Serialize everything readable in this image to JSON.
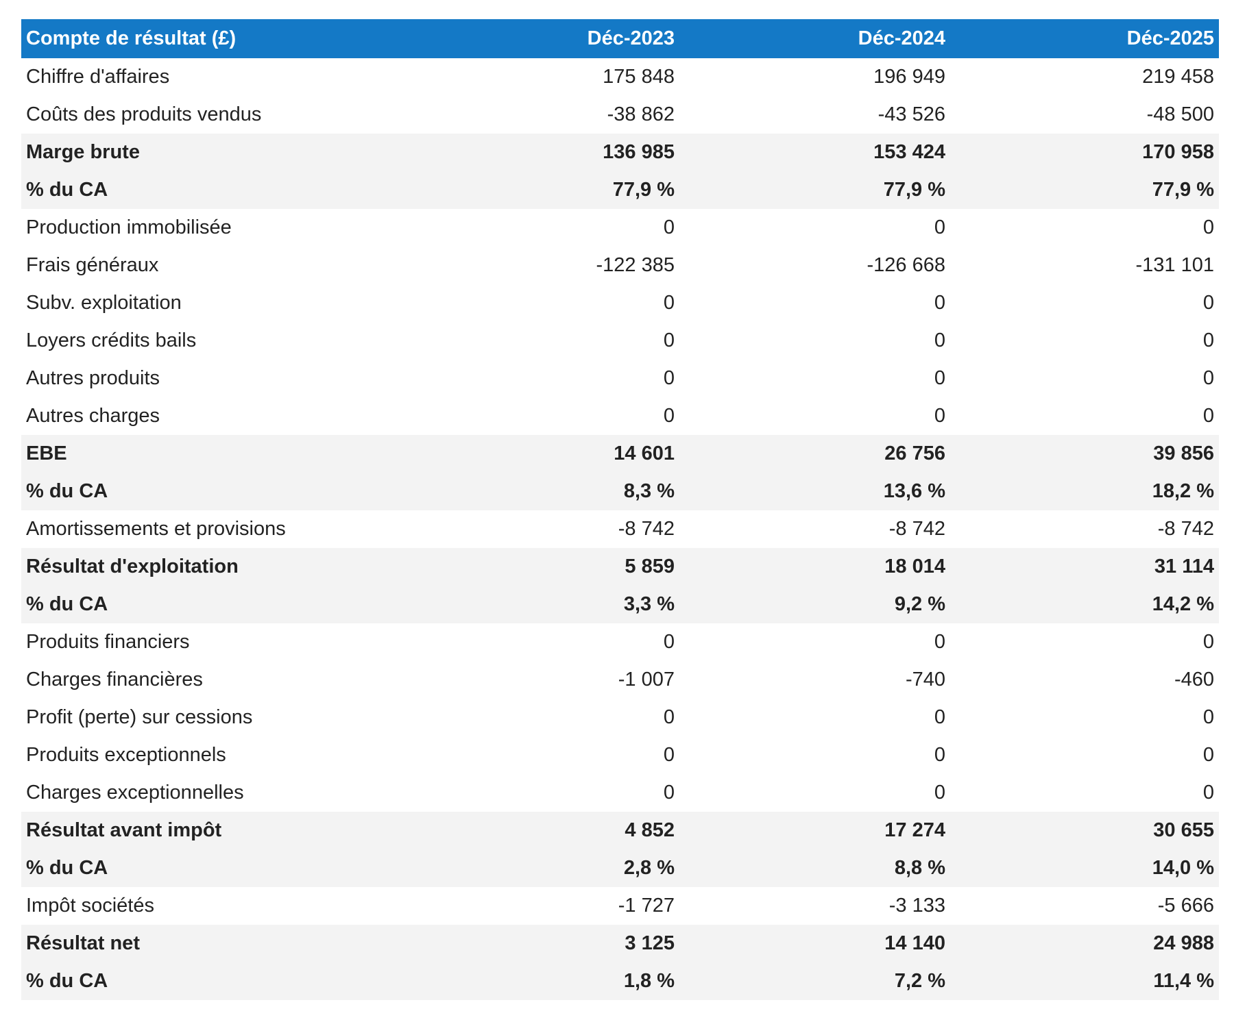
{
  "table": {
    "header": [
      "Compte de résultat (£)",
      "Déc-2023",
      "Déc-2024",
      "Déc-2025"
    ],
    "rows": [
      [
        "Chiffre d'affaires",
        "175 848",
        "196 949",
        "219 458"
      ],
      [
        "Coûts des produits vendus",
        "-38 862",
        "-43 526",
        "-48 500"
      ],
      [
        "Marge brute",
        "136 985",
        "153 424",
        "170 958"
      ],
      [
        "% du CA",
        "77,9 %",
        "77,9 %",
        "77,9 %"
      ],
      [
        "Production immobilisée",
        "0",
        "0",
        "0"
      ],
      [
        "Frais généraux",
        "-122 385",
        "-126 668",
        "-131 101"
      ],
      [
        "Subv. exploitation",
        "0",
        "0",
        "0"
      ],
      [
        "Loyers crédits bails",
        "0",
        "0",
        "0"
      ],
      [
        "Autres produits",
        "0",
        "0",
        "0"
      ],
      [
        "Autres charges",
        "0",
        "0",
        "0"
      ],
      [
        "EBE",
        "14 601",
        "26 756",
        "39 856"
      ],
      [
        "% du CA",
        "8,3 %",
        "13,6 %",
        "18,2 %"
      ],
      [
        "Amortissements et provisions",
        "-8 742",
        "-8 742",
        "-8 742"
      ],
      [
        "Résultat d'exploitation",
        "5 859",
        "18 014",
        "31 114"
      ],
      [
        "% du CA",
        "3,3 %",
        "9,2 %",
        "14,2 %"
      ],
      [
        "Produits financiers",
        "0",
        "0",
        "0"
      ],
      [
        "Charges financières",
        "-1 007",
        "-740",
        "-460"
      ],
      [
        "Profit (perte) sur cessions",
        "0",
        "0",
        "0"
      ],
      [
        "Produits exceptionnels",
        "0",
        "0",
        "0"
      ],
      [
        "Charges exceptionnelles",
        "0",
        "0",
        "0"
      ],
      [
        "Résultat avant impôt",
        "4 852",
        "17 274",
        "30 655"
      ],
      [
        "% du CA",
        "2,8 %",
        "8,8 %",
        "14,0 %"
      ],
      [
        "Impôt sociétés",
        "-1 727",
        "-3 133",
        "-5 666"
      ],
      [
        "Résultat net",
        "3 125",
        "14 140",
        "24 988"
      ],
      [
        "% du CA",
        "1,8 %",
        "7,2 %",
        "11,4 %"
      ]
    ]
  }
}
